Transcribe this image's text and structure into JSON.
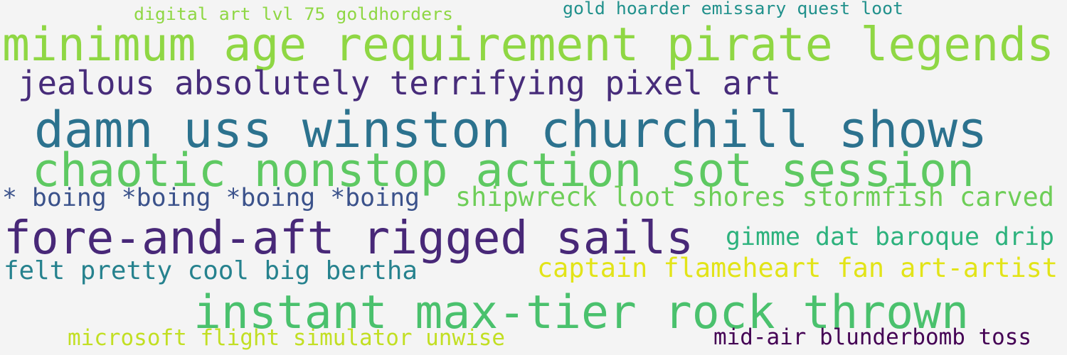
{
  "word_cloud": {
    "words": [
      "digital art lvl 75 goldhorders",
      "gold hoarder emissary quest loot",
      "minimum age requirement pirate legends",
      "jealous absolutely terrifying pixel art",
      "damn uss winston churchill shows",
      "chaotic nonstop action sot session",
      "* boing *boing *boing *boing",
      "shipwreck loot shores stormfish carved",
      "fore-and-aft rigged sails",
      "gimme dat baroque drip",
      "felt pretty cool big bertha",
      "captain flameheart fan art-artist",
      "instant max-tier rock thrown",
      "microsoft flight simulator unwise",
      "mid-air blunderbomb toss"
    ]
  }
}
